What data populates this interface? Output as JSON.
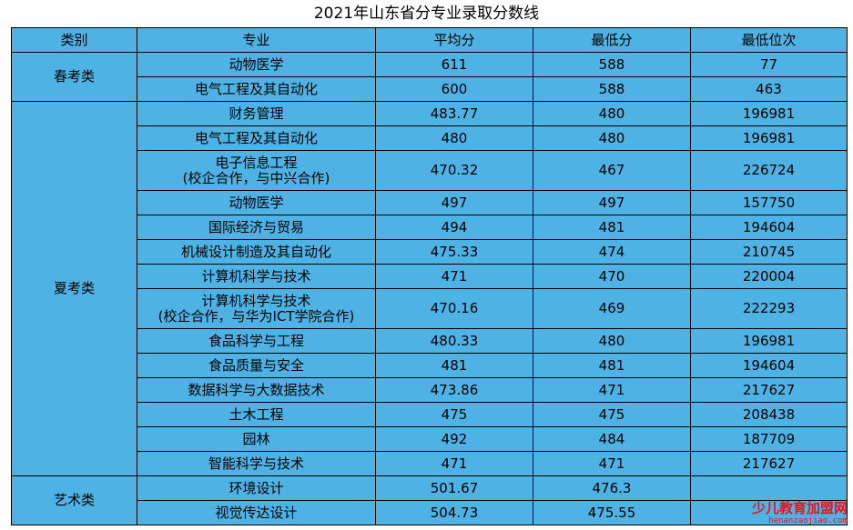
{
  "title": "2021年山东省分专业录取分数线",
  "columns": [
    "类别",
    "专业",
    "平均分",
    "最低分",
    "最低位次"
  ],
  "groups": [
    {
      "category": "春考类",
      "rows": [
        {
          "major": "动物医学",
          "avg": "611",
          "min": "588",
          "rank": "77"
        },
        {
          "major": "电气工程及其自动化",
          "avg": "600",
          "min": "588",
          "rank": "463"
        }
      ]
    },
    {
      "category": "夏考类",
      "rows": [
        {
          "major": "财务管理",
          "avg": "483.77",
          "min": "480",
          "rank": "196981"
        },
        {
          "major": "电气工程及其自动化",
          "avg": "480",
          "min": "480",
          "rank": "196981"
        },
        {
          "major": "电子信息工程",
          "major_note": "(校企合作，与中兴合作)",
          "avg": "470.32",
          "min": "467",
          "rank": "226724"
        },
        {
          "major": "动物医学",
          "avg": "497",
          "min": "497",
          "rank": "157750"
        },
        {
          "major": "国际经济与贸易",
          "avg": "494",
          "min": "481",
          "rank": "194604"
        },
        {
          "major": "机械设计制造及其自动化",
          "avg": "475.33",
          "min": "474",
          "rank": "210745"
        },
        {
          "major": "计算机科学与技术",
          "avg": "471",
          "min": "470",
          "rank": "220004"
        },
        {
          "major": "计算机科学与技术",
          "major_note": "(校企合作，与华为ICT学院合作)",
          "avg": "470.16",
          "min": "469",
          "rank": "222293"
        },
        {
          "major": "食品科学与工程",
          "avg": "480.33",
          "min": "480",
          "rank": "196981"
        },
        {
          "major": "食品质量与安全",
          "avg": "481",
          "min": "481",
          "rank": "194604"
        },
        {
          "major": "数据科学与大数据技术",
          "avg": "473.86",
          "min": "471",
          "rank": "217627"
        },
        {
          "major": "土木工程",
          "avg": "475",
          "min": "475",
          "rank": "208438"
        },
        {
          "major": "园林",
          "avg": "492",
          "min": "484",
          "rank": "187709"
        },
        {
          "major": "智能科学与技术",
          "avg": "471",
          "min": "471",
          "rank": "217627"
        }
      ]
    },
    {
      "category": "艺术类",
      "rows": [
        {
          "major": "环境设计",
          "avg": "501.67",
          "min": "476.3",
          "rank": ""
        },
        {
          "major": "视觉传达设计",
          "avg": "504.73",
          "min": "475.55",
          "rank": ""
        }
      ]
    }
  ],
  "watermark": {
    "cn": "少儿教育加盟网",
    "en": "henanzaojiao.com"
  }
}
